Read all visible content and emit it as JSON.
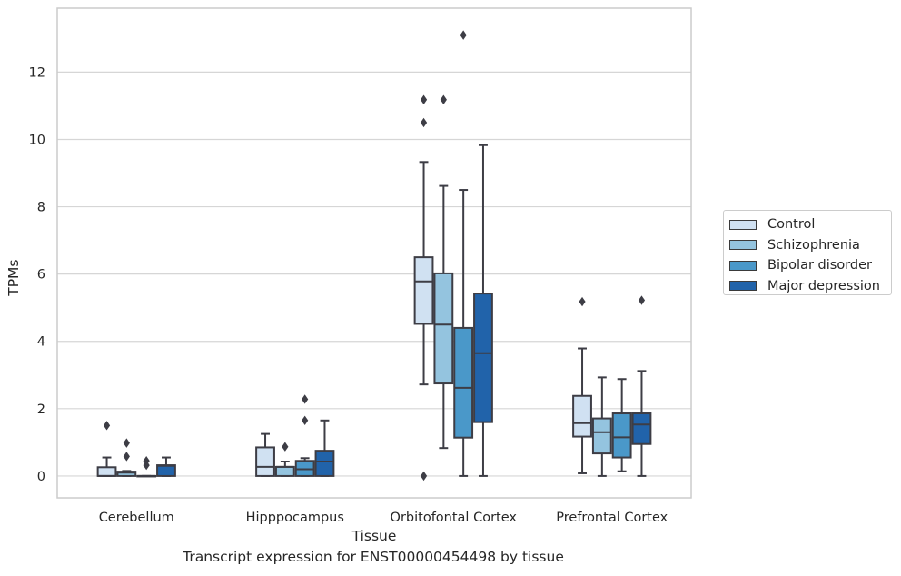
{
  "chart_data": {
    "type": "box",
    "title": "",
    "xlabel": "Tissue",
    "ylabel": "TPMs",
    "caption": "Transcript expression for ENST00000454498 by tissue",
    "ylim": [
      -0.65,
      13.9
    ],
    "yticks": [
      0,
      2,
      4,
      6,
      8,
      10,
      12
    ],
    "grid": "horizontal",
    "legend_position": "right",
    "categories": [
      "Cerebellum",
      "Hipppocampus",
      "Orbitofontal Cortex",
      "Prefrontal Cortex"
    ],
    "series": [
      {
        "name": "Control",
        "color": "#d0e1f2",
        "boxes": [
          {
            "whisker_low": 0,
            "q1": 0,
            "median": 0,
            "q3": 0.26,
            "whisker_high": 0.55,
            "outliers": [
              1.5
            ]
          },
          {
            "whisker_low": 0,
            "q1": 0,
            "median": 0.27,
            "q3": 0.85,
            "whisker_high": 1.25,
            "outliers": []
          },
          {
            "whisker_low": 2.72,
            "q1": 4.52,
            "median": 5.78,
            "q3": 6.5,
            "whisker_high": 9.33,
            "outliers": [
              10.5,
              11.18,
              0
            ]
          },
          {
            "whisker_low": 0.08,
            "q1": 1.17,
            "median": 1.57,
            "q3": 2.38,
            "whisker_high": 3.79,
            "outliers": [
              5.18
            ]
          }
        ]
      },
      {
        "name": "Schizophrenia",
        "color": "#94c4df",
        "boxes": [
          {
            "whisker_low": 0,
            "q1": 0,
            "median": 0.1,
            "q3": 0.13,
            "whisker_high": 0.15,
            "outliers": [
              0.98,
              0.58
            ]
          },
          {
            "whisker_low": 0,
            "q1": 0,
            "median": 0.27,
            "q3": 0.27,
            "whisker_high": 0.43,
            "outliers": [
              0.87
            ]
          },
          {
            "whisker_low": 0.83,
            "q1": 2.75,
            "median": 4.5,
            "q3": 6.02,
            "whisker_high": 8.62,
            "outliers": [
              11.18
            ]
          },
          {
            "whisker_low": 0,
            "q1": 0.67,
            "median": 1.3,
            "q3": 1.71,
            "whisker_high": 2.93,
            "outliers": []
          }
        ]
      },
      {
        "name": "Bipolar disorder",
        "color": "#4a98c9",
        "boxes": [
          {
            "whisker_low": 0,
            "q1": 0,
            "median": 0,
            "q3": 0,
            "whisker_high": 0,
            "outliers": [
              0.45,
              0.32
            ]
          },
          {
            "whisker_low": 0,
            "q1": 0,
            "median": 0.2,
            "q3": 0.45,
            "whisker_high": 0.53,
            "outliers": [
              2.28,
              1.65
            ]
          },
          {
            "whisker_low": 0,
            "q1": 1.14,
            "median": 2.62,
            "q3": 4.4,
            "whisker_high": 8.5,
            "outliers": [
              13.1
            ]
          },
          {
            "whisker_low": 0.14,
            "q1": 0.55,
            "median": 1.15,
            "q3": 1.86,
            "whisker_high": 2.88,
            "outliers": []
          }
        ]
      },
      {
        "name": "Major depression",
        "color": "#2163aa",
        "boxes": [
          {
            "whisker_low": 0,
            "q1": 0,
            "median": 0.3,
            "q3": 0.32,
            "whisker_high": 0.55,
            "outliers": []
          },
          {
            "whisker_low": 0,
            "q1": 0,
            "median": 0.43,
            "q3": 0.75,
            "whisker_high": 1.65,
            "outliers": []
          },
          {
            "whisker_low": 0,
            "q1": 1.6,
            "median": 3.65,
            "q3": 5.42,
            "whisker_high": 9.83,
            "outliers": []
          },
          {
            "whisker_low": 0,
            "q1": 0.95,
            "median": 1.53,
            "q3": 1.86,
            "whisker_high": 3.12,
            "outliers": [
              5.22
            ]
          }
        ]
      }
    ]
  }
}
